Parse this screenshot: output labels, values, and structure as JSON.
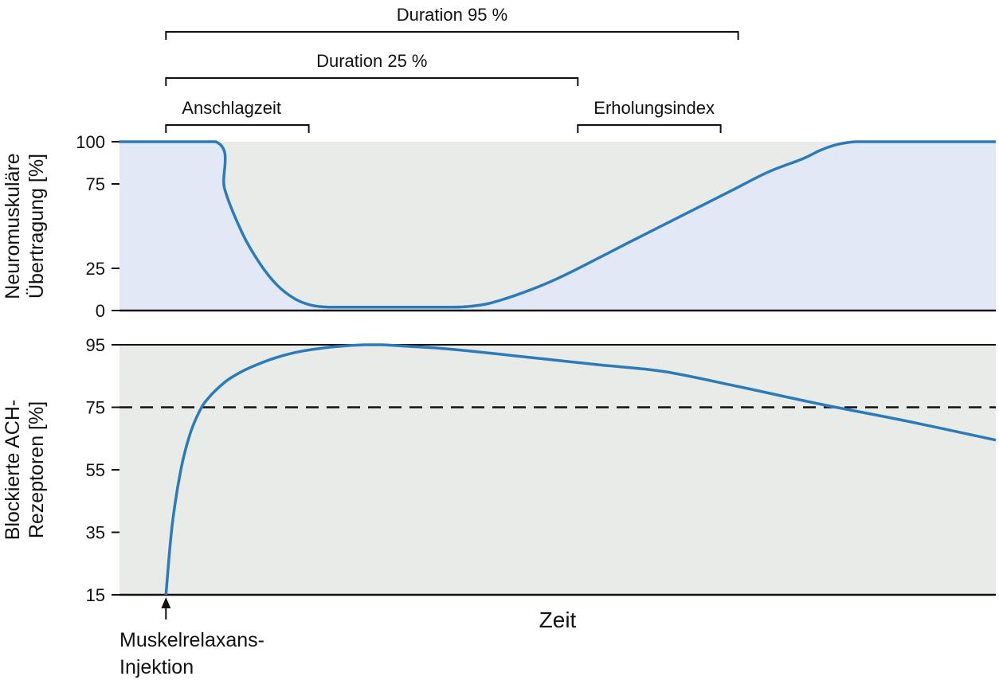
{
  "chart_data": [
    {
      "type": "area",
      "ylabel_lines": [
        "Neuromuskuläre",
        "Übertragung [%]"
      ],
      "ylim": [
        0,
        100
      ],
      "yticks": [
        "100",
        "75",
        "25",
        "0"
      ],
      "xticks": [],
      "grid": false,
      "series": [
        {
          "x": [
            0,
            0.11,
            0.12,
            0.14,
            0.16,
            0.18,
            0.2,
            0.22,
            0.24,
            0.26,
            0.3,
            0.34,
            0.38,
            0.4,
            0.42,
            0.44,
            0.46,
            0.48,
            0.5,
            0.52,
            0.55,
            0.58,
            0.62,
            0.66,
            0.7,
            0.74,
            0.78,
            0.8,
            0.82,
            0.84,
            0.86,
            0.9,
            0.95,
            1.0
          ],
          "values": [
            100,
            100,
            72,
            46,
            28,
            15,
            7,
            3,
            2,
            2,
            2,
            2,
            2,
            2.5,
            4,
            7,
            10.5,
            14.5,
            19,
            24,
            32,
            40,
            50.5,
            61,
            71.5,
            82,
            90,
            95,
            98.5,
            100,
            100,
            100,
            100,
            100
          ]
        }
      ],
      "brackets": [
        {
          "label": "Duration 95 %",
          "x_start": 0.053,
          "x_end": 0.706
        },
        {
          "label": "Duration 25 %",
          "x_start": 0.053,
          "x_end": 0.523
        },
        {
          "label": "Anschlagzeit",
          "x_start": 0.053,
          "x_end": 0.216
        },
        {
          "label": "Erholungsindex",
          "x_start": 0.523,
          "x_end": 0.686
        }
      ]
    },
    {
      "type": "line",
      "ylabel_lines": [
        "Blockierte ACH-",
        "Rezeptoren [%]"
      ],
      "ylim": [
        15,
        95
      ],
      "yticks": [
        "95",
        "75",
        "55",
        "35",
        "15"
      ],
      "xlabel": "Zeit",
      "reference_line": {
        "y": 75,
        "style": "dashed"
      },
      "series": [
        {
          "x": [
            0.053,
            0.06,
            0.07,
            0.08,
            0.09,
            0.1,
            0.12,
            0.14,
            0.16,
            0.18,
            0.2,
            0.22,
            0.25,
            0.28,
            0.3,
            0.33,
            0.36,
            0.4,
            0.45,
            0.5,
            0.55,
            0.62,
            0.7,
            0.8,
            0.9,
            1.0
          ],
          "values": [
            15,
            37,
            55,
            66,
            73,
            77.5,
            83,
            86.5,
            89,
            91,
            92.5,
            93.5,
            94.5,
            95,
            95,
            94.5,
            94,
            93,
            91.5,
            90,
            88.5,
            86.5,
            82,
            76,
            70.5,
            64.5
          ]
        }
      ],
      "annotation": {
        "lines": [
          "Muskelrelaxans-",
          "Injektion"
        ],
        "arrow_at_x": 0.053
      }
    }
  ]
}
